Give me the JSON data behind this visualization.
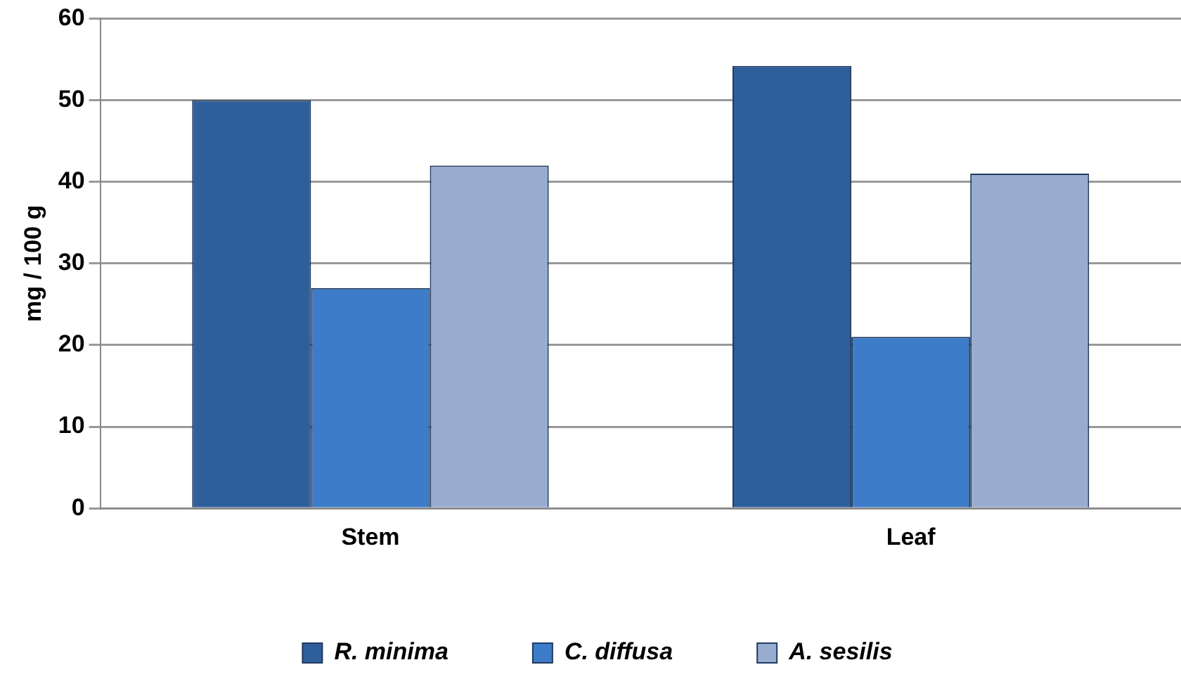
{
  "chart_data": {
    "type": "bar",
    "ylabel": "mg / 100 g",
    "categories": [
      "Stem",
      "Leaf"
    ],
    "series": [
      {
        "name": "R. minima",
        "color": "#2f5f9a",
        "values": [
          50,
          54.2
        ]
      },
      {
        "name": "C. diffusa",
        "color": "#3d7cc9",
        "values": [
          27,
          21
        ]
      },
      {
        "name": "A. sesilis",
        "color": "#98acd0",
        "values": [
          42,
          41
        ]
      }
    ],
    "ylim": [
      0,
      60
    ],
    "yticks": [
      0,
      10,
      20,
      30,
      40,
      50,
      60
    ],
    "grid": "y",
    "legend": "bottom"
  }
}
